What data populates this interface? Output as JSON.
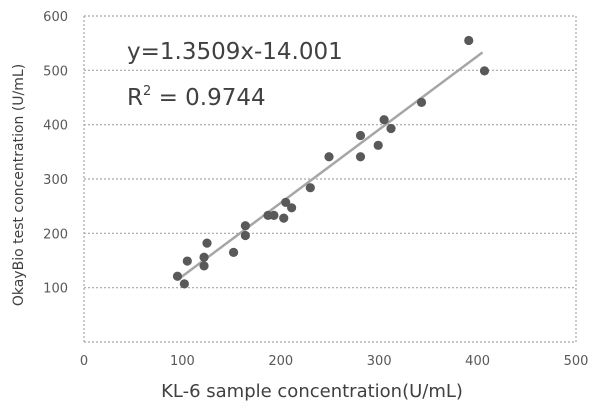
{
  "chart_data": {
    "type": "scatter",
    "title": "",
    "xlabel": "KL-6 sample concentration(U/mL)",
    "ylabel": "OkayBio test concentration (U/mL)",
    "xlim": [
      0,
      500
    ],
    "ylim": [
      0,
      600
    ],
    "x_ticks": [
      "0",
      "100",
      "200",
      "300",
      "400",
      "500"
    ],
    "y_ticks": [
      "100",
      "200",
      "300",
      "400",
      "500",
      "600"
    ],
    "grid": "horizontal dashed",
    "annotations": {
      "equation": "y=1.3509x-14.001",
      "r2_prefix": "R",
      "r2_sup": "2",
      "r2_value": " = 0.9744"
    },
    "trendline": {
      "slope": 1.3509,
      "intercept": -14.001,
      "x_range": [
        95,
        405
      ]
    },
    "points": [
      {
        "x": 95,
        "y": 121
      },
      {
        "x": 102,
        "y": 107
      },
      {
        "x": 105,
        "y": 149
      },
      {
        "x": 122,
        "y": 140
      },
      {
        "x": 122,
        "y": 156
      },
      {
        "x": 125,
        "y": 182
      },
      {
        "x": 152,
        "y": 165
      },
      {
        "x": 164,
        "y": 196
      },
      {
        "x": 164,
        "y": 214
      },
      {
        "x": 187,
        "y": 233
      },
      {
        "x": 193,
        "y": 233
      },
      {
        "x": 203,
        "y": 228
      },
      {
        "x": 205,
        "y": 257
      },
      {
        "x": 211,
        "y": 247
      },
      {
        "x": 230,
        "y": 284
      },
      {
        "x": 249,
        "y": 341
      },
      {
        "x": 281,
        "y": 341
      },
      {
        "x": 281,
        "y": 380
      },
      {
        "x": 299,
        "y": 362
      },
      {
        "x": 305,
        "y": 409
      },
      {
        "x": 312,
        "y": 393
      },
      {
        "x": 343,
        "y": 441
      },
      {
        "x": 391,
        "y": 555
      },
      {
        "x": 407,
        "y": 499
      }
    ]
  }
}
